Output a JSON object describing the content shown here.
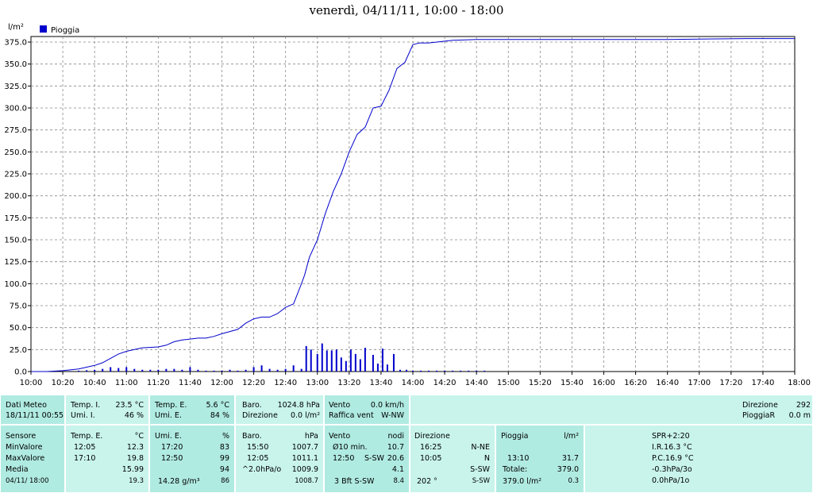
{
  "chart_data": {
    "type": "line",
    "title": "venerdì, 04/11/11, 10:00 - 18:00",
    "ylabel": "l/m²",
    "legend": {
      "label": "Pioggia",
      "color": "#0000cc",
      "placement": "top-left"
    },
    "ylim": [
      0,
      380
    ],
    "yticks": [
      "0.0",
      "25.0",
      "50.0",
      "75.0",
      "100.0",
      "125.0",
      "150.0",
      "175.0",
      "200.0",
      "225.0",
      "250.0",
      "275.0",
      "300.0",
      "325.0",
      "350.0",
      "375.0"
    ],
    "xticks": [
      "10:00",
      "10:20",
      "10:40",
      "11:00",
      "11:20",
      "11:40",
      "12:00",
      "12:20",
      "12:40",
      "13:00",
      "13:20",
      "13:40",
      "14:00",
      "14:20",
      "14:40",
      "15:00",
      "15:20",
      "15:40",
      "16:00",
      "16:20",
      "16:40",
      "17:00",
      "17:20",
      "17:40",
      "18:00"
    ],
    "grid": true,
    "cumulative": {
      "name": "Pioggia",
      "x_minutes": [
        0,
        10,
        20,
        30,
        40,
        45,
        50,
        55,
        60,
        65,
        70,
        80,
        85,
        90,
        95,
        100,
        105,
        110,
        115,
        120,
        130,
        135,
        140,
        145,
        150,
        155,
        160,
        165,
        170,
        172,
        175,
        180,
        185,
        190,
        195,
        200,
        205,
        210,
        215,
        220,
        225,
        230,
        235,
        240,
        242,
        244,
        247,
        250,
        255,
        265,
        280,
        300,
        360,
        400,
        450,
        480
      ],
      "values": [
        0,
        0,
        1,
        3,
        7,
        10,
        15,
        20,
        23,
        25,
        27,
        28,
        30,
        34,
        36,
        37,
        38,
        38,
        40,
        43,
        48,
        55,
        60,
        62,
        62,
        66,
        73,
        77,
        100,
        110,
        130,
        150,
        180,
        205,
        225,
        250,
        270,
        278,
        300,
        302,
        320,
        345,
        352,
        372,
        373,
        374,
        374,
        374,
        375,
        377,
        378,
        378,
        378,
        378,
        379,
        379
      ]
    },
    "bars": {
      "name": "Pioggia",
      "x_minutes": [
        15,
        25,
        30,
        35,
        40,
        45,
        50,
        55,
        60,
        65,
        70,
        75,
        80,
        85,
        90,
        95,
        100,
        105,
        110,
        115,
        120,
        125,
        130,
        135,
        140,
        145,
        150,
        155,
        160,
        165,
        170,
        173,
        176,
        180,
        183,
        186,
        189,
        192,
        195,
        198,
        201,
        204,
        207,
        210,
        215,
        218,
        221,
        224,
        228,
        232,
        236,
        240,
        245,
        250,
        255,
        260,
        265,
        270,
        275,
        280,
        285
      ],
      "values": [
        0.5,
        0.5,
        1,
        1.5,
        2,
        3,
        5,
        4,
        5,
        3,
        2,
        2,
        2,
        3,
        3,
        2,
        5,
        2,
        1,
        1,
        1,
        2,
        1,
        2,
        5,
        7,
        3,
        2,
        3,
        7,
        3,
        29,
        25,
        20,
        32,
        24,
        24,
        25,
        16,
        12,
        25,
        20,
        14,
        27,
        19,
        9,
        26,
        8,
        20,
        2,
        2,
        1,
        1,
        1,
        1,
        1,
        1,
        1,
        1,
        1,
        1
      ]
    }
  },
  "panel": {
    "row1": {
      "dati_meteo": "Dati Meteo",
      "dati_time": "18/11/11 00:55",
      "temp_i_label": "Temp. I.",
      "temp_i_value": "23.5 °C",
      "umi_i_label": "Umi. I.",
      "umi_i_value": "46 %",
      "temp_e_label": "Temp. E.",
      "temp_e_value": "5.6 °C",
      "umi_e_label": "Umi. E.",
      "umi_e_value": "84 %",
      "baro_label": "Baro.",
      "baro_value": "1024.8 hPa",
      "direzione_label": "Direzione",
      "direzione_value": "0.0 l/m²",
      "vento_label": "Vento",
      "vento_value": "0.0 km/h",
      "raffica_label": "Raffica vent",
      "raffica_value": "W-NW",
      "direzione2_label": "Direzione",
      "direzione2_value": "292",
      "pioggiar_label": "PioggiaR",
      "pioggiar_value": "0.0 m"
    },
    "row2": {
      "sensore": "Sensore",
      "min_label": "MinValore",
      "max_label": "MaxValore",
      "media_label": "Media",
      "date": "04/11/ 18:00",
      "tempe_head": "Temp. E.",
      "tempe_unit": "°C",
      "tempe_min_time": "12:05",
      "tempe_min": "12.3",
      "tempe_max_time": "17:10",
      "tempe_max": "19.8",
      "tempe_media": "15.99",
      "tempe_last": "19.3",
      "umie_head": "Umi. E.",
      "umie_unit": "%",
      "umie_min_time": "17:20",
      "umie_min": "83",
      "umie_max_time": "12:50",
      "umie_max": "99",
      "umie_media": "94",
      "umie_abs": "14.28 g/m³",
      "umie_last": "86",
      "baro_head": "Baro.",
      "baro_unit": "hPa",
      "baro_min_time": "15:50",
      "baro_min": "1007.7",
      "baro_max_time": "12:05",
      "baro_max": "1011.1",
      "baro_trend": "^2.0hPa/o",
      "baro_media": "1009.9",
      "baro_last": "1008.7",
      "vento_head": "Vento",
      "vento_unit": "nodi",
      "vento_10min": "Ø10 min.",
      "vento_10min_val": "10.7",
      "vento_max_time": "12:50",
      "vento_max_dir": "S-SW",
      "vento_max": "20.6",
      "vento_media": "4.1",
      "vento_last": "3 Bft S-SW",
      "vento_last_val": "8.4",
      "dir_head": "Direzione",
      "dir_t1": "16:25",
      "dir_v1": "N-NE",
      "dir_t2": "10:05",
      "dir_v2": "N",
      "dir_v3": "S-SW",
      "dir_last": "202 °",
      "dir_last_v": "S-SW",
      "piog_head": "Pioggia",
      "piog_unit": "l/m²",
      "piog_time": "13:10",
      "piog_max": "31.7",
      "piog_totale_label": "Totale:",
      "piog_totale": "379.0",
      "piog_total_line": "379.0 l/m²",
      "piog_last": "0.3",
      "spr_head": "SPR+2:20",
      "spr_1": "I.R.16.3 °C",
      "spr_2": "P.C.16.9 °C",
      "spr_3": "-0.3hPa/3o",
      "spr_4": "0.0hPa/1o"
    }
  }
}
